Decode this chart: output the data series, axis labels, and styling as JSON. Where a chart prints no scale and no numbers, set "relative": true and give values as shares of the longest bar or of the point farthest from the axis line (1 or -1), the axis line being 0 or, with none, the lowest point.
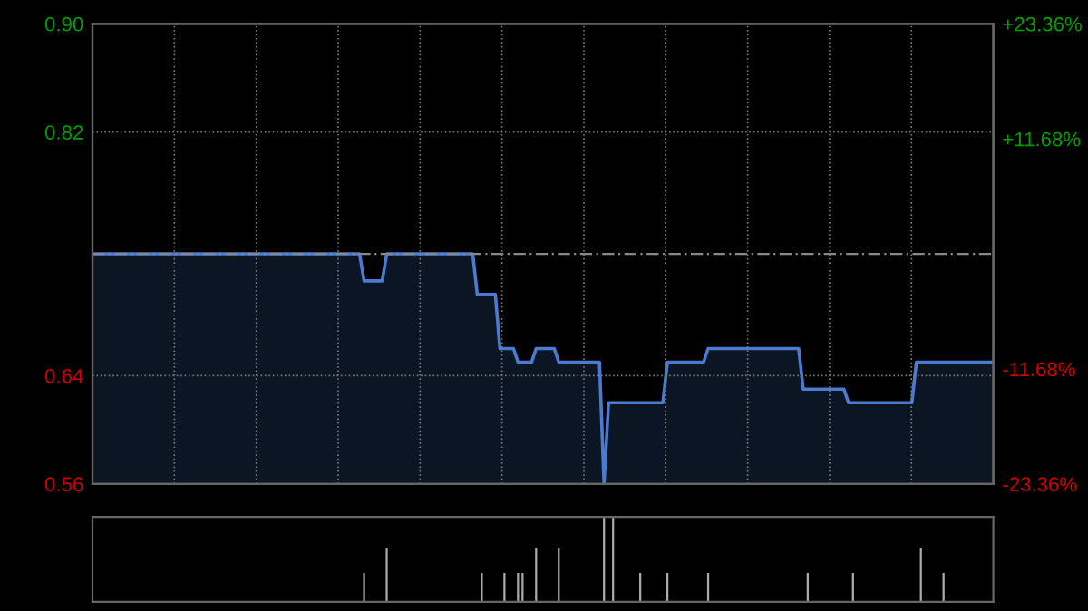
{
  "chart_data": [
    {
      "type": "area",
      "color": "#4a7bd0",
      "ylim": [
        0.56,
        0.9
      ],
      "yticks": [
        {
          "value": 0.9,
          "label": "0.90"
        },
        0.82,
        0.64,
        0.56
      ],
      "y2lim": [
        -23.36,
        23.36
      ],
      "y2ticks": [
        {
          "value": 23.36,
          "label": "+23.36%"
        },
        {
          "value": 11.68,
          "label": "+11.68%"
        },
        {
          "value": -11.68,
          "label": "-11.68%"
        },
        {
          "value": -23.36,
          "label": "-23.36%"
        }
      ],
      "grid": true,
      "ref_lines": [
        {
          "axis": "y",
          "value": 0.73,
          "line_style": "dashed",
          "color": "#888888"
        }
      ],
      "categories": [
        null,
        null,
        null,
        null,
        null,
        null,
        null,
        null,
        null,
        null,
        null,
        null,
        null,
        null,
        null,
        null,
        null,
        null,
        null,
        null,
        null,
        null,
        null,
        null,
        null,
        null,
        null,
        null,
        null,
        null,
        null,
        null,
        null,
        null,
        null,
        null,
        null,
        null,
        null,
        null,
        null,
        null,
        null,
        null,
        null,
        null,
        null,
        null,
        null,
        null,
        null,
        null,
        null,
        null,
        null,
        null,
        null,
        null,
        null,
        null,
        null,
        null,
        null,
        null,
        null,
        null,
        null,
        null,
        null,
        null,
        null,
        null,
        null,
        null,
        null,
        null,
        null,
        null,
        null,
        null,
        null,
        null,
        null,
        null,
        null,
        null,
        null,
        null,
        null,
        null,
        null,
        null,
        null,
        null,
        null,
        null,
        null,
        null,
        null,
        null,
        null,
        null,
        null,
        null,
        null,
        null,
        null,
        null,
        null,
        null,
        null,
        null,
        null,
        null,
        null,
        null,
        null,
        null,
        null,
        null,
        null,
        null,
        null,
        null,
        null,
        null,
        null,
        null,
        null,
        null,
        null,
        null,
        null,
        null,
        null,
        null,
        null,
        null,
        null,
        null,
        null,
        null,
        null,
        null,
        null,
        null,
        null,
        null,
        null,
        null,
        null,
        null,
        null,
        null,
        null,
        null,
        null,
        null,
        null,
        null,
        null,
        null,
        null,
        null,
        null,
        null,
        null,
        null,
        null,
        null,
        null,
        null,
        null,
        null,
        null,
        null,
        null,
        null,
        null,
        null,
        null,
        null,
        null,
        null,
        null,
        null,
        null,
        null,
        null,
        null,
        null,
        null,
        null,
        null,
        null,
        null,
        null,
        null,
        null,
        null
      ],
      "values": [
        0.73,
        0.73,
        0.73,
        0.73,
        0.73,
        0.73,
        0.73,
        0.73,
        0.73,
        0.73,
        0.73,
        0.73,
        0.73,
        0.73,
        0.73,
        0.73,
        0.73,
        0.73,
        0.73,
        0.73,
        0.73,
        0.73,
        0.73,
        0.73,
        0.73,
        0.73,
        0.73,
        0.73,
        0.73,
        0.73,
        0.73,
        0.73,
        0.73,
        0.73,
        0.73,
        0.73,
        0.73,
        0.73,
        0.73,
        0.73,
        0.73,
        0.73,
        0.73,
        0.73,
        0.73,
        0.73,
        0.73,
        0.73,
        0.73,
        0.73,
        0.73,
        0.73,
        0.73,
        0.73,
        0.73,
        0.73,
        0.73,
        0.73,
        0.73,
        0.73,
        0.71,
        0.71,
        0.71,
        0.71,
        0.71,
        0.73,
        0.73,
        0.73,
        0.73,
        0.73,
        0.73,
        0.73,
        0.73,
        0.73,
        0.73,
        0.73,
        0.73,
        0.73,
        0.73,
        0.73,
        0.73,
        0.73,
        0.73,
        0.73,
        0.73,
        0.7,
        0.7,
        0.7,
        0.7,
        0.7,
        0.66,
        0.66,
        0.66,
        0.66,
        0.65,
        0.65,
        0.65,
        0.65,
        0.66,
        0.66,
        0.66,
        0.66,
        0.66,
        0.65,
        0.65,
        0.65,
        0.65,
        0.65,
        0.65,
        0.65,
        0.65,
        0.65,
        0.65,
        0.56,
        0.62,
        0.62,
        0.62,
        0.62,
        0.62,
        0.62,
        0.62,
        0.62,
        0.62,
        0.62,
        0.62,
        0.62,
        0.62,
        0.65,
        0.65,
        0.65,
        0.65,
        0.65,
        0.65,
        0.65,
        0.65,
        0.65,
        0.66,
        0.66,
        0.66,
        0.66,
        0.66,
        0.66,
        0.66,
        0.66,
        0.66,
        0.66,
        0.66,
        0.66,
        0.66,
        0.66,
        0.66,
        0.66,
        0.66,
        0.66,
        0.66,
        0.66,
        0.66,
        0.63,
        0.63,
        0.63,
        0.63,
        0.63,
        0.63,
        0.63,
        0.63,
        0.63,
        0.63,
        0.62,
        0.62,
        0.62,
        0.62,
        0.62,
        0.62,
        0.62,
        0.62,
        0.62,
        0.62,
        0.62,
        0.62,
        0.62,
        0.62,
        0.62,
        0.65,
        0.65,
        0.65,
        0.65,
        0.65,
        0.65,
        0.65,
        0.65,
        0.65,
        0.65,
        0.65,
        0.65,
        0.65,
        0.65,
        0.65,
        0.65,
        0.65,
        0.65
      ]
    },
    {
      "type": "bar",
      "color": "#aaaaaa",
      "relative": true,
      "categories": [
        null,
        null,
        null,
        null,
        null,
        null,
        null,
        null,
        null,
        null,
        null,
        null,
        null,
        null,
        null,
        null,
        null,
        null,
        null,
        null,
        null,
        null,
        null,
        null,
        null,
        null,
        null,
        null,
        null,
        null,
        null,
        null,
        null,
        null,
        null,
        null,
        null,
        null,
        null,
        null,
        null,
        null,
        null,
        null,
        null,
        null,
        null,
        null,
        null,
        null,
        null,
        null,
        null,
        null,
        null,
        null,
        null,
        null,
        null,
        null,
        null,
        null,
        null,
        null,
        null,
        null,
        null,
        null,
        null,
        null,
        null,
        null,
        null,
        null,
        null,
        null,
        null,
        null,
        null,
        null,
        null,
        null,
        null,
        null,
        null,
        null,
        null,
        null,
        null,
        null,
        null,
        null,
        null,
        null,
        null,
        null,
        null,
        null,
        null,
        null,
        null,
        null,
        null,
        null,
        null,
        null,
        null,
        null,
        null,
        null,
        null,
        null,
        null,
        null,
        null,
        null,
        null,
        null,
        null,
        null,
        null,
        null,
        null,
        null,
        null,
        null,
        null,
        null,
        null,
        null,
        null,
        null,
        null,
        null,
        null,
        null,
        null,
        null,
        null,
        null,
        null,
        null,
        null,
        null,
        null,
        null,
        null,
        null,
        null,
        null,
        null,
        null,
        null,
        null,
        null,
        null,
        null,
        null,
        null,
        null,
        null,
        null,
        null,
        null,
        null,
        null,
        null,
        null,
        null,
        null,
        null,
        null,
        null,
        null,
        null,
        null,
        null,
        null,
        null,
        null,
        null,
        null,
        null,
        null,
        null,
        null,
        null,
        null,
        null,
        null,
        null,
        null,
        null,
        null,
        null,
        null,
        null,
        null,
        null,
        null
      ],
      "values": [
        null,
        null,
        null,
        null,
        null,
        null,
        null,
        null,
        null,
        null,
        null,
        null,
        null,
        null,
        null,
        null,
        null,
        null,
        null,
        null,
        null,
        null,
        null,
        null,
        null,
        null,
        null,
        null,
        null,
        null,
        null,
        null,
        null,
        null,
        null,
        null,
        null,
        null,
        null,
        null,
        null,
        null,
        null,
        null,
        null,
        null,
        null,
        null,
        null,
        null,
        null,
        null,
        null,
        null,
        null,
        null,
        null,
        null,
        null,
        null,
        0.34,
        null,
        null,
        null,
        null,
        0.64,
        null,
        null,
        null,
        null,
        null,
        null,
        null,
        null,
        null,
        null,
        null,
        null,
        null,
        null,
        null,
        null,
        null,
        null,
        null,
        null,
        0.34,
        null,
        null,
        null,
        null,
        0.34,
        null,
        null,
        0.34,
        0.34,
        null,
        null,
        0.64,
        null,
        null,
        null,
        null,
        0.64,
        null,
        null,
        null,
        null,
        null,
        null,
        null,
        null,
        null,
        1,
        null,
        1,
        null,
        null,
        null,
        null,
        null,
        0.34,
        null,
        null,
        null,
        null,
        null,
        0.34,
        null,
        null,
        null,
        null,
        null,
        null,
        null,
        null,
        0.34,
        null,
        null,
        null,
        null,
        null,
        null,
        null,
        null,
        null,
        null,
        null,
        null,
        null,
        null,
        null,
        null,
        null,
        null,
        null,
        null,
        null,
        0.34,
        null,
        null,
        null,
        null,
        null,
        null,
        null,
        null,
        null,
        0.34,
        null,
        null,
        null,
        null,
        null,
        null,
        null,
        null,
        null,
        null,
        null,
        null,
        null,
        null,
        0.64,
        null,
        null,
        null,
        null,
        0.34,
        null,
        null,
        null,
        null,
        null,
        null,
        null,
        null,
        null,
        null,
        null
      ]
    }
  ]
}
